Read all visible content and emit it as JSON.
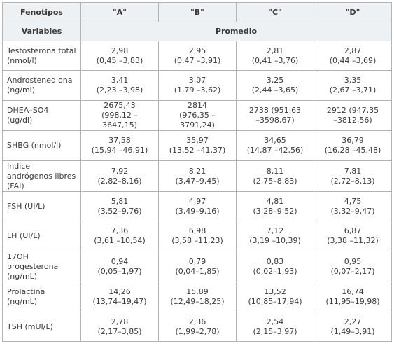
{
  "header": {
    "col0": "Fenotipos",
    "phenotypes": [
      "\"A\"",
      "\"B\"",
      "\"C\"",
      "\"D\""
    ],
    "variables_label": "Variables",
    "average_label": "Promedio"
  },
  "rows": [
    {
      "label": "Testosterona total (nmol/l)",
      "cells": [
        [
          "2,98",
          "(0,45 –3,83)"
        ],
        [
          "2,95",
          "(0,47 –3,91)"
        ],
        [
          "2,81",
          "(0,41 –3,76)"
        ],
        [
          "2,87",
          "(0,44 –3,69)"
        ]
      ]
    },
    {
      "label": "Androstenediona (ng/ml)",
      "cells": [
        [
          "3,41",
          "(2,23 –3,98)"
        ],
        [
          "3,07",
          "(1,79 –3,62)"
        ],
        [
          "3,25",
          "(2,44 –3,65)"
        ],
        [
          "3,35",
          "(2,67 –3,71)"
        ]
      ]
    },
    {
      "label": "DHEA–SO4 (ug/dl)",
      "cells": [
        [
          "2675,43",
          "(998,12 –3647,15)"
        ],
        [
          "2814",
          "(976,35 –3791,24)"
        ],
        [
          "2738 (951,63",
          "–3598,67)"
        ],
        [
          "2912 (947,35",
          "–3812,56)"
        ]
      ]
    },
    {
      "label": "SHBG (nmol/l)",
      "cells": [
        [
          "37,58",
          "(15,94 –46,91)"
        ],
        [
          "35,97",
          "(13,52 –41,37)"
        ],
        [
          "34,65",
          "(14,87 –42,56)"
        ],
        [
          "36,79",
          "(16,28 –45,48)"
        ]
      ]
    },
    {
      "label": "Índice andrógenos libres (FAI)",
      "cells": [
        [
          "7,92",
          "(2,82–8,16)"
        ],
        [
          "8,21",
          "(3,47–9,45)"
        ],
        [
          "8,11",
          "(2,75–8,83)"
        ],
        [
          "7,81",
          "(2,72–8,13)"
        ]
      ]
    },
    {
      "label": "FSH (UI/L)",
      "cells": [
        [
          "5,81",
          "(3,52–9,76)"
        ],
        [
          "4,97",
          "(3,49–9,16)"
        ],
        [
          "4,81",
          "(3,28–9,52)"
        ],
        [
          "4,75",
          "(3,32–9,47)"
        ]
      ]
    },
    {
      "label": "LH (UI/L)",
      "cells": [
        [
          "7,36",
          "(3,61 –10,54)"
        ],
        [
          "6,98",
          "(3,58 –11,23)"
        ],
        [
          "7,12",
          "(3,19 –10,39)"
        ],
        [
          "6,87",
          "(3,38 –11,32)"
        ]
      ]
    },
    {
      "label": "17OH progesterona (ng/mL)",
      "cells": [
        [
          "0,94",
          "(0,05–1,97)"
        ],
        [
          "0,79",
          "(0,04–1,85)"
        ],
        [
          "0,83",
          "(0,02–1,93)"
        ],
        [
          "0,95",
          "(0,07–2,17)"
        ]
      ]
    },
    {
      "label": "Prolactina (ng/mL)",
      "cells": [
        [
          "14,26",
          "(13,74–19,47)"
        ],
        [
          "15,89",
          "(12,49–18,25)"
        ],
        [
          "13,52",
          "(10,85–17,94)"
        ],
        [
          "16,74",
          "(11,95–19,98)"
        ]
      ]
    },
    {
      "label": "TSH (mUI/L)",
      "cells": [
        [
          "2,78",
          "(2,17–3,85)"
        ],
        [
          "2,36",
          "(1,99–2,78)"
        ],
        [
          "2,54",
          "(2,15–3,97)"
        ],
        [
          "2,27",
          "(1,49–3,91)"
        ]
      ]
    }
  ]
}
